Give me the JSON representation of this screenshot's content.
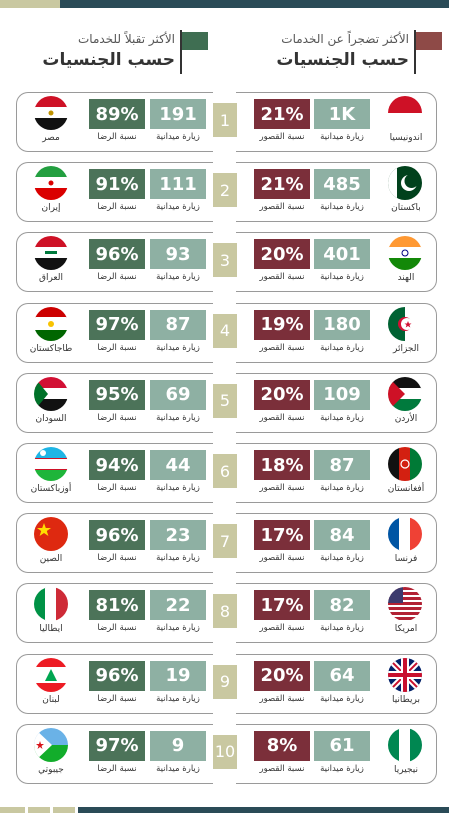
{
  "colors": {
    "green": "#4c7359",
    "gray": "#8eb0a3",
    "red": "#7b2f3a",
    "rank_bg": "#c9c8a1"
  },
  "left_header": {
    "line1": "الأكثر تقبلاً للخدمات",
    "line2": "حسب الجنسيات",
    "flag_color": "#3f6e52"
  },
  "right_header": {
    "line1": "الأكثر تضجراً عن الخدمات",
    "line2": "حسب الجنسيات",
    "flag_color": "#8e4a47"
  },
  "labels": {
    "visits": "زيارة ميدانية",
    "satisfaction": "نسبة الرضا",
    "shortfall": "نسبة القصور"
  },
  "rows": [
    {
      "rank": "1",
      "left_country": "مصر",
      "left_flag": "egypt-flag",
      "left_visits": "191",
      "left_satisfaction": "89%",
      "right_country": "اندونيسيا",
      "right_flag": "indonesia-flag",
      "right_visits": "1K",
      "right_shortfall": "21%"
    },
    {
      "rank": "2",
      "left_country": "إيران",
      "left_flag": "iran-flag",
      "left_visits": "111",
      "left_satisfaction": "91%",
      "right_country": "باكستان",
      "right_flag": "pakistan-flag",
      "right_visits": "485",
      "right_shortfall": "21%"
    },
    {
      "rank": "3",
      "left_country": "العراق",
      "left_flag": "iraq-flag",
      "left_visits": "93",
      "left_satisfaction": "96%",
      "right_country": "الهند",
      "right_flag": "india-flag",
      "right_visits": "401",
      "right_shortfall": "20%"
    },
    {
      "rank": "4",
      "left_country": "طاجاكستان",
      "left_flag": "tajikistan-flag",
      "left_visits": "87",
      "left_satisfaction": "97%",
      "right_country": "الجزائر",
      "right_flag": "algeria-flag",
      "right_visits": "180",
      "right_shortfall": "19%"
    },
    {
      "rank": "5",
      "left_country": "السودان",
      "left_flag": "sudan-flag",
      "left_visits": "69",
      "left_satisfaction": "95%",
      "right_country": "الأردن",
      "right_flag": "jordan-flag",
      "right_visits": "109",
      "right_shortfall": "20%"
    },
    {
      "rank": "6",
      "left_country": "أوزباكستان",
      "left_flag": "uzbekistan-flag",
      "left_visits": "44",
      "left_satisfaction": "94%",
      "right_country": "أفغانستان",
      "right_flag": "afghanistan-flag",
      "right_visits": "87",
      "right_shortfall": "18%"
    },
    {
      "rank": "7",
      "left_country": "الصين",
      "left_flag": "china-flag",
      "left_visits": "23",
      "left_satisfaction": "96%",
      "right_country": "فرنسا",
      "right_flag": "france-flag",
      "right_visits": "84",
      "right_shortfall": "17%"
    },
    {
      "rank": "8",
      "left_country": "ايطاليا",
      "left_flag": "italy-flag",
      "left_visits": "22",
      "left_satisfaction": "81%",
      "right_country": "امريكا",
      "right_flag": "usa-flag",
      "right_visits": "82",
      "right_shortfall": "17%"
    },
    {
      "rank": "9",
      "left_country": "لبنان",
      "left_flag": "lebanon-flag",
      "left_visits": "19",
      "left_satisfaction": "96%",
      "right_country": "بريطانيا",
      "right_flag": "uk-flag",
      "right_visits": "64",
      "right_shortfall": "20%"
    },
    {
      "rank": "10",
      "left_country": "جيبوتي",
      "left_flag": "djibouti-flag",
      "left_visits": "9",
      "left_satisfaction": "97%",
      "right_country": "نيجيريا",
      "right_flag": "nigeria-flag",
      "right_visits": "61",
      "right_shortfall": "8%"
    }
  ]
}
